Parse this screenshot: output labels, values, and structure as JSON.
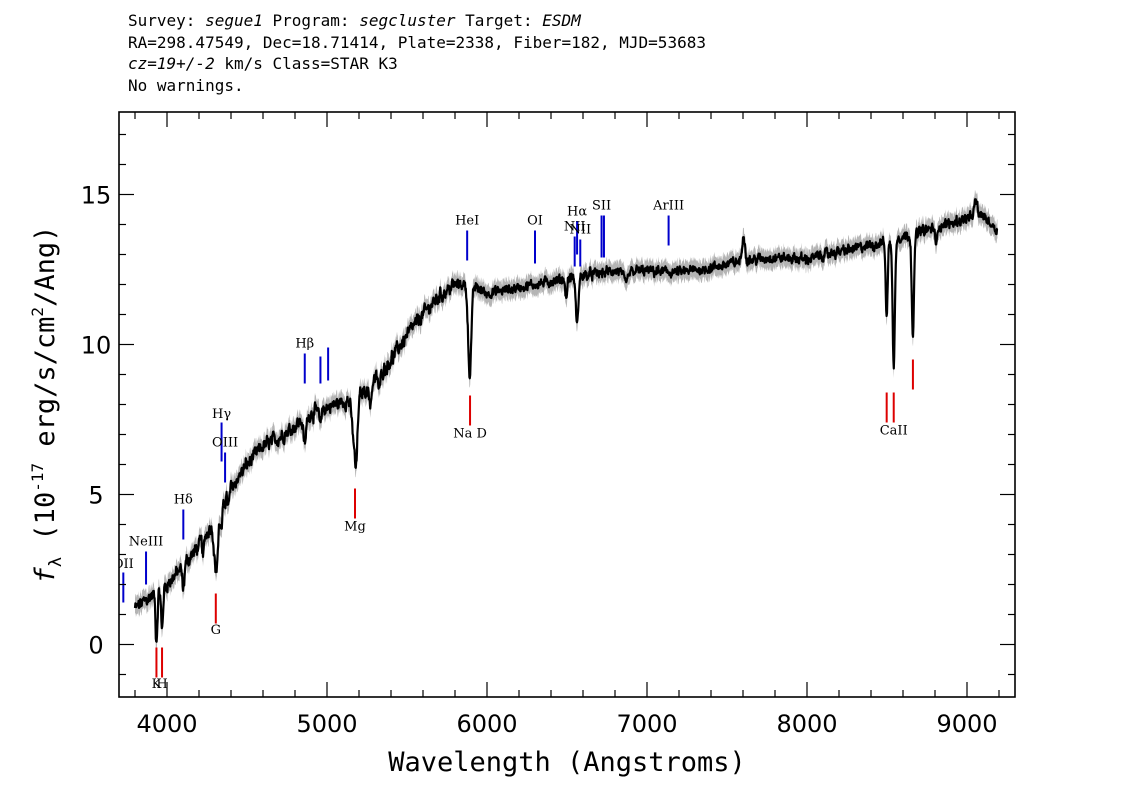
{
  "header": {
    "line1": {
      "survey_label": "Survey: ",
      "survey": "segue1",
      "program_label": " Program: ",
      "program": "segcluster",
      "target_label": " Target: ",
      "target": "ESDM"
    },
    "line2": "RA=298.47549, Dec=18.71414, Plate=2338, Fiber=182, MJD=53683",
    "line3": {
      "cz": "cz=19+/-2",
      "rest": " km/s Class=STAR K3"
    },
    "line4": "No warnings."
  },
  "chart_data": {
    "type": "line",
    "xlabel": "Wavelength (Angstroms)",
    "ylabel": "f_λ (10^-17 erg/s/cm^2/Ang)",
    "ylabel_parts": {
      "f": "f",
      "lambda": "λ",
      "open": " (10",
      "exp1": "-17",
      "mid": " erg/s/cm",
      "exp2": "2",
      "close": "/Ang)"
    },
    "xlim": [
      3700,
      9300
    ],
    "ylim": [
      -1.75,
      17.75
    ],
    "x_ticks": [
      4000,
      5000,
      6000,
      7000,
      8000,
      9000
    ],
    "x_tick_labels": [
      "4000",
      "5000",
      "6000",
      "7000",
      "8000",
      "9000"
    ],
    "y_ticks": [
      0,
      5,
      10,
      15
    ],
    "y_tick_labels": [
      "0",
      "5",
      "10",
      "15"
    ],
    "series_color": "#000000",
    "error_color": "#b4b4b4",
    "emission_color": "#0000cc",
    "absorption_color": "#dd0000",
    "continuum": {
      "x": [
        3800,
        3900,
        4000,
        4100,
        4200,
        4300,
        4400,
        4500,
        4600,
        4700,
        4800,
        4900,
        5000,
        5100,
        5200,
        5300,
        5400,
        5500,
        5600,
        5700,
        5800,
        5900,
        6000,
        6200,
        6400,
        6600,
        6800,
        7000,
        7200,
        7400,
        7600,
        7800,
        8000,
        8200,
        8400,
        8600,
        8800,
        9000,
        9100,
        9190
      ],
      "y": [
        1.2,
        1.6,
        2.0,
        2.6,
        3.3,
        4.2,
        5.2,
        6.0,
        6.6,
        6.9,
        7.3,
        7.7,
        7.9,
        8.1,
        8.3,
        8.8,
        9.5,
        10.3,
        11.0,
        11.6,
        12.0,
        12.0,
        11.7,
        11.9,
        12.1,
        12.3,
        12.45,
        12.45,
        12.4,
        12.55,
        12.8,
        12.9,
        12.85,
        13.1,
        13.3,
        13.6,
        13.9,
        14.2,
        14.3,
        13.8
      ]
    },
    "absorption_features": [
      {
        "x": 3934,
        "depth": 1.6,
        "width": 6
      },
      {
        "x": 3969,
        "depth": 1.4,
        "width": 6
      },
      {
        "x": 4102,
        "depth": 0.8,
        "width": 6
      },
      {
        "x": 4227,
        "depth": 0.6,
        "width": 5
      },
      {
        "x": 4307,
        "depth": 1.8,
        "width": 12
      },
      {
        "x": 4341,
        "depth": 0.8,
        "width": 6
      },
      {
        "x": 4384,
        "depth": 0.5,
        "width": 5
      },
      {
        "x": 4861,
        "depth": 0.9,
        "width": 8
      },
      {
        "x": 4957,
        "depth": 0.5,
        "width": 6
      },
      {
        "x": 5170,
        "depth": 1.4,
        "width": 14
      },
      {
        "x": 5183,
        "depth": 1.4,
        "width": 8
      },
      {
        "x": 5270,
        "depth": 0.6,
        "width": 8
      },
      {
        "x": 5328,
        "depth": 0.5,
        "width": 6
      },
      {
        "x": 5892,
        "depth": 3.0,
        "width": 10
      },
      {
        "x": 6495,
        "depth": 0.6,
        "width": 6
      },
      {
        "x": 6563,
        "depth": 1.6,
        "width": 8
      },
      {
        "x": 6867,
        "depth": 0.4,
        "width": 14
      },
      {
        "x": 8498,
        "depth": 2.6,
        "width": 6
      },
      {
        "x": 8542,
        "depth": 4.3,
        "width": 7
      },
      {
        "x": 8662,
        "depth": 3.4,
        "width": 7
      },
      {
        "x": 8806,
        "depth": 0.7,
        "width": 5
      }
    ],
    "emission_features": [
      {
        "x": 7604,
        "height": 0.9,
        "width": 8
      },
      {
        "x": 9055,
        "height": 0.5,
        "width": 10
      }
    ],
    "line_markers": [
      {
        "label": "OII",
        "x": 3727,
        "type": "emission",
        "y_top": 2.4,
        "y_bottom": 1.4,
        "label_y": 2.55
      },
      {
        "label": "NeIII",
        "x": 3869,
        "type": "emission",
        "y_top": 3.1,
        "y_bottom": 2.0,
        "label_y": 3.3
      },
      {
        "label": "Hδ",
        "x": 4102,
        "type": "emission",
        "y_top": 4.5,
        "y_bottom": 3.5,
        "label_y": 4.7
      },
      {
        "label": "Hγ",
        "x": 4341,
        "type": "emission",
        "y_top": 7.4,
        "y_bottom": 6.1,
        "label_y": 7.55
      },
      {
        "label": "OIII",
        "x": 4363,
        "type": "emission",
        "y_top": 6.4,
        "y_bottom": 5.4,
        "label_y": 6.6
      },
      {
        "label": "Hβ",
        "x": 4861,
        "type": "emission",
        "y_top": 9.7,
        "y_bottom": 8.7,
        "label_y": 9.9
      },
      {
        "label": "OIII",
        "x": 4959,
        "type": "emission",
        "y_top": 9.6,
        "y_bottom": 8.7,
        "label_y": ""
      },
      {
        "label": "",
        "x": 5007,
        "type": "emission",
        "y_top": 9.9,
        "y_bottom": 8.8,
        "label_y": 10.1
      },
      {
        "label": "HeI",
        "x": 5876,
        "type": "emission",
        "y_top": 13.8,
        "y_bottom": 12.8,
        "label_y": 14.0
      },
      {
        "label": "OI",
        "x": 6300,
        "type": "emission",
        "y_top": 13.8,
        "y_bottom": 12.7,
        "label_y": 14.0
      },
      {
        "label": "NII",
        "x": 6548,
        "type": "emission",
        "y_top": 13.6,
        "y_bottom": 12.6,
        "label_y": 13.8
      },
      {
        "label": "Hα",
        "x": 6563,
        "type": "emission",
        "y_top": 14.1,
        "y_bottom": 13.0,
        "label_y": 14.3
      },
      {
        "label": "NII",
        "x": 6583,
        "type": "emission",
        "y_top": 13.5,
        "y_bottom": 12.6,
        "label_y": 13.7
      },
      {
        "label": "SII",
        "x": 6716,
        "type": "emission",
        "y_top": 14.3,
        "y_bottom": 12.9,
        "label_y": 14.5
      },
      {
        "label": "",
        "x": 6731,
        "type": "emission",
        "y_top": 14.3,
        "y_bottom": 12.9,
        "label_y": ""
      },
      {
        "label": "ArIII",
        "x": 7135,
        "type": "emission",
        "y_top": 14.3,
        "y_bottom": 13.3,
        "label_y": 14.5
      },
      {
        "label": "K",
        "x": 3934,
        "type": "absorption",
        "y_top": -0.1,
        "y_bottom": -1.1,
        "label_y": -1.45
      },
      {
        "label": "H",
        "x": 3969,
        "type": "absorption",
        "y_top": -0.1,
        "y_bottom": -1.1,
        "label_y": -1.45
      },
      {
        "label": "G",
        "x": 4305,
        "type": "absorption",
        "y_top": 1.7,
        "y_bottom": 0.7,
        "label_y": 0.35
      },
      {
        "label": "Mg",
        "x": 5175,
        "type": "absorption",
        "y_top": 5.2,
        "y_bottom": 4.2,
        "label_y": 3.8
      },
      {
        "label": "Na D",
        "x": 5894,
        "type": "absorption",
        "y_top": 8.3,
        "y_bottom": 7.3,
        "label_y": 6.9
      },
      {
        "label": "",
        "x": 8498,
        "type": "absorption",
        "y_top": 8.4,
        "y_bottom": 7.4,
        "label_y": ""
      },
      {
        "label": "CaII",
        "x": 8542,
        "type": "absorption",
        "y_top": 8.4,
        "y_bottom": 7.4,
        "label_y": 7.0
      },
      {
        "label": "",
        "x": 8662,
        "type": "absorption",
        "y_top": 9.5,
        "y_bottom": 8.5,
        "label_y": ""
      }
    ]
  }
}
